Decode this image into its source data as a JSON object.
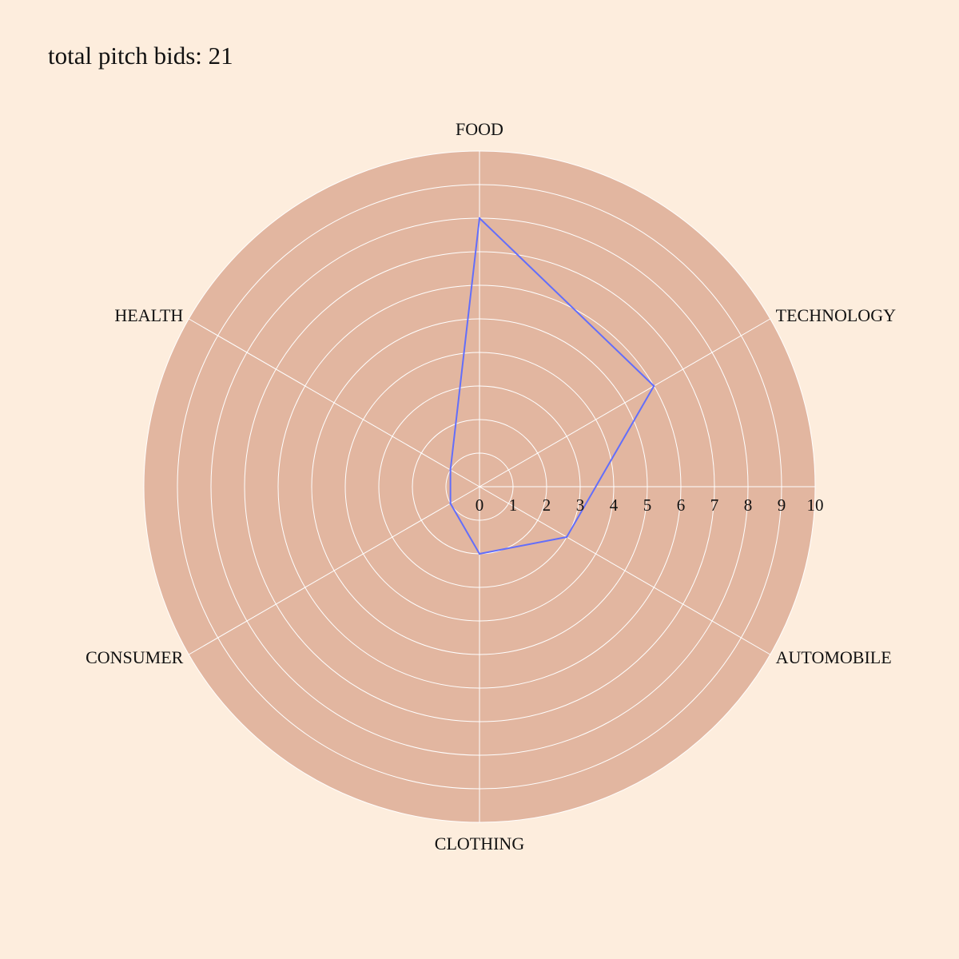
{
  "title": "total pitch bids: 21",
  "colors": {
    "page_background": "#fdeddd",
    "polar_background": "#e2b6a0",
    "grid": "#ffffff",
    "series_line": "#636efa",
    "text": "#111111"
  },
  "chart_data": {
    "type": "radar",
    "categories": [
      "FOOD",
      "TECHNOLOGY",
      "AUTOMOBILE",
      "CLOTHING",
      "CONSUMER",
      "HEALTH"
    ],
    "series": [
      {
        "values": [
          8,
          6,
          3,
          2,
          1,
          1
        ]
      }
    ],
    "radial_range": [
      0,
      10
    ],
    "radial_ticks": [
      "0",
      "1",
      "2",
      "3",
      "4",
      "5",
      "6",
      "7",
      "8",
      "9",
      "10"
    ],
    "grid": true,
    "legend": false
  }
}
